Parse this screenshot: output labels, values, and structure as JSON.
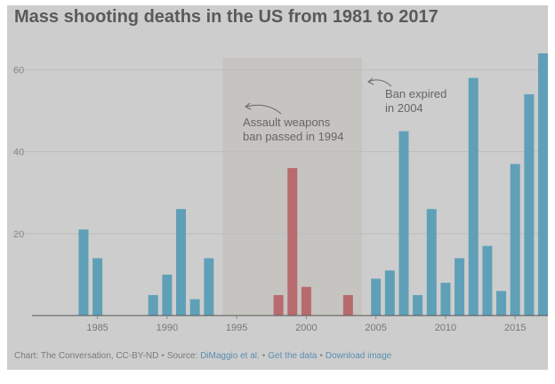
{
  "colors": {
    "background": "#cdcdcd",
    "ban_band": "#c6c4c1",
    "bar_default": "#5fa0b8",
    "bar_ban": "#b86b6e",
    "gridline": "#bdbdbd",
    "axis": "#555555",
    "text": "#666666"
  },
  "chart_data": {
    "type": "bar",
    "title": "Mass shooting deaths in the US from 1981 to 2017",
    "xlabel": "",
    "ylabel": "",
    "ylim": [
      0,
      64
    ],
    "yticks": [
      20,
      40,
      60
    ],
    "xticks": [
      1985,
      1990,
      1995,
      2000,
      2005,
      2010,
      2015
    ],
    "grid": true,
    "ban_period": [
      1994,
      2004
    ],
    "series": [
      {
        "x": [
          1984,
          1985,
          1989,
          1990,
          1991,
          1992,
          1993,
          1998,
          1999,
          2000,
          2003,
          2005,
          2006,
          2007,
          2008,
          2009,
          2010,
          2011,
          2012,
          2013,
          2014,
          2015,
          2016,
          2017
        ],
        "values": [
          21,
          14,
          5,
          10,
          26,
          4,
          14,
          5,
          36,
          7,
          5,
          9,
          11,
          45,
          5,
          26,
          8,
          14,
          58,
          17,
          6,
          37,
          54,
          64
        ],
        "color_group": [
          "default",
          "default",
          "default",
          "default",
          "default",
          "default",
          "default",
          "ban",
          "ban",
          "ban",
          "ban",
          "default",
          "default",
          "default",
          "default",
          "default",
          "default",
          "default",
          "default",
          "default",
          "default",
          "default",
          "default",
          "default"
        ]
      }
    ],
    "annotations": [
      {
        "id": "ban-passed",
        "lines": [
          "Assault weapons",
          "ban passed in 1994"
        ]
      },
      {
        "id": "ban-expired",
        "lines": [
          "Ban expired",
          "in 2004"
        ]
      }
    ]
  },
  "footer": {
    "credit": "Chart: The Conversation, CC-BY-ND",
    "source_prefix": "Source:",
    "source_link": "DiMaggio et al.",
    "get_data": "Get the data",
    "download": "Download image",
    "separator": "•"
  }
}
